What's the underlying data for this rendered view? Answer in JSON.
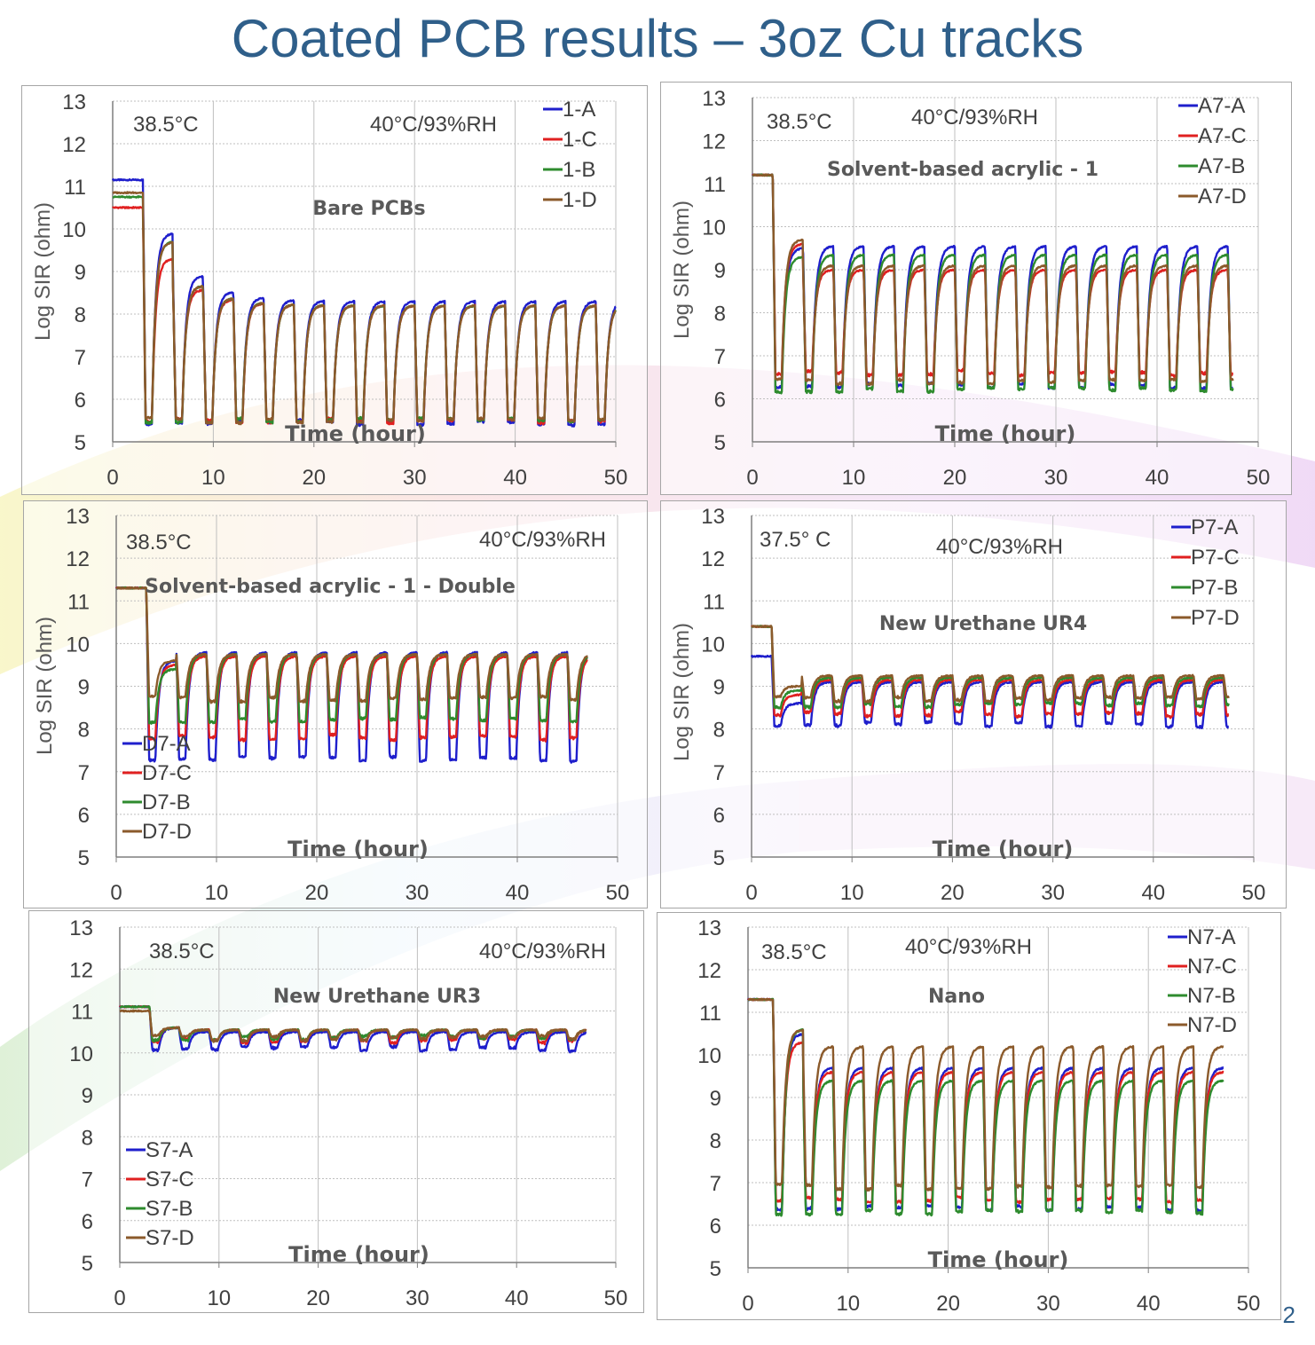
{
  "slide": {
    "title": "Coated PCB results – 3oz  Cu tracks",
    "page_number": "2"
  },
  "chart_data": [
    {
      "type": "line",
      "subtitle": "Bare PCBs",
      "annotations": [
        "38.5°C",
        "40°C/93%RH"
      ],
      "xlabel": "Time (hour)",
      "ylabel": "Log SIR (ohm)",
      "xlim": [
        0,
        50
      ],
      "ylim": [
        5,
        13
      ],
      "xticks": [
        0,
        10,
        20,
        30,
        40,
        50
      ],
      "yticks": [
        5,
        6,
        7,
        8,
        9,
        10,
        11,
        12,
        13
      ],
      "grid": true,
      "legend_position": "top-right",
      "cycle": {
        "start": 3,
        "period": 3,
        "end": 50,
        "first_peak": [
          9.9,
          9.3,
          9.7,
          9.7
        ],
        "peak_decay": [
          0.6,
          0.55,
          0.5,
          0.5
        ],
        "steady_high": [
          8.3,
          8.2,
          8.2,
          8.2
        ],
        "low": [
          5.45,
          5.5,
          5.5,
          5.5
        ],
        "initial": [
          11.15,
          10.5,
          10.75,
          10.85
        ]
      },
      "series": [
        {
          "name": "1-A",
          "color": "#1f1fcc"
        },
        {
          "name": "1-C",
          "color": "#e02020"
        },
        {
          "name": "1-B",
          "color": "#2e8b2e"
        },
        {
          "name": "1-D",
          "color": "#8b5a2b"
        }
      ]
    },
    {
      "type": "line",
      "subtitle": "Solvent-based acrylic - 1",
      "annotations": [
        "38.5°C",
        "40°C/93%RH"
      ],
      "xlabel": "Time (hour)",
      "ylabel": "Log SIR (ohm)",
      "xlim": [
        0,
        50
      ],
      "ylim": [
        5,
        13
      ],
      "xticks": [
        0,
        10,
        20,
        30,
        40,
        50
      ],
      "yticks": [
        5,
        6,
        7,
        8,
        9,
        10,
        11,
        12,
        13
      ],
      "grid": true,
      "legend_position": "top-right",
      "cycle": {
        "start": 2,
        "period": 3,
        "end": 47.5,
        "first_peak": [
          9.5,
          9.6,
          9.3,
          9.7
        ],
        "peak_decay": [
          0,
          0,
          0,
          0
        ],
        "steady_high": [
          9.55,
          9.0,
          9.35,
          9.1
        ],
        "low": [
          6.3,
          6.6,
          6.2,
          6.4
        ],
        "initial": [
          11.2,
          11.2,
          11.2,
          11.2
        ]
      },
      "series": [
        {
          "name": "A7-A",
          "color": "#1f1fcc"
        },
        {
          "name": "A7-C",
          "color": "#e02020"
        },
        {
          "name": "A7-B",
          "color": "#2e8b2e"
        },
        {
          "name": "A7-D",
          "color": "#8b5a2b"
        }
      ]
    },
    {
      "type": "line",
      "subtitle": "Solvent-based acrylic - 1 - Double",
      "annotations": [
        "38.5°C",
        "40°C/93%RH"
      ],
      "xlabel": "Time (hour)",
      "ylabel": "Log SIR (ohm)",
      "xlim": [
        0,
        50
      ],
      "ylim": [
        5,
        13
      ],
      "xticks": [
        0,
        10,
        20,
        30,
        40,
        50
      ],
      "yticks": [
        5,
        6,
        7,
        8,
        9,
        10,
        11,
        12,
        13
      ],
      "grid": true,
      "legend_position": "bottom-left",
      "cycle": {
        "start": 3,
        "period": 3,
        "end": 47,
        "first_peak": [
          9.6,
          9.5,
          9.4,
          9.6
        ],
        "peak_decay": [
          0,
          0,
          0,
          0
        ],
        "steady_high": [
          9.8,
          9.7,
          9.75,
          9.75
        ],
        "low": [
          7.3,
          7.8,
          8.2,
          8.7
        ],
        "initial": [
          11.3,
          11.3,
          11.3,
          11.3
        ]
      },
      "series": [
        {
          "name": "D7-A",
          "color": "#1f1fcc"
        },
        {
          "name": "D7-C",
          "color": "#e02020"
        },
        {
          "name": "D7-B",
          "color": "#2e8b2e"
        },
        {
          "name": "D7-D",
          "color": "#8b5a2b"
        }
      ]
    },
    {
      "type": "line",
      "subtitle": "New Urethane UR4",
      "annotations": [
        "37.5° C",
        "40°C/93%RH"
      ],
      "xlabel": "Time (hour)",
      "ylabel": "Log SIR (ohm)",
      "xlim": [
        0,
        50
      ],
      "ylim": [
        5,
        13
      ],
      "xticks": [
        0,
        10,
        20,
        30,
        40,
        50
      ],
      "yticks": [
        5,
        6,
        7,
        8,
        9,
        10,
        11,
        12,
        13
      ],
      "grid": true,
      "legend_position": "top-right",
      "cycle": {
        "start": 2,
        "period": 3,
        "end": 47.5,
        "first_peak": [
          8.6,
          8.8,
          8.9,
          9.0
        ],
        "peak_decay": [
          0,
          0,
          0,
          0
        ],
        "steady_high": [
          9.1,
          9.15,
          9.2,
          9.25
        ],
        "low": [
          8.1,
          8.35,
          8.55,
          8.7
        ],
        "initial": [
          9.7,
          10.4,
          10.4,
          10.4
        ]
      },
      "series": [
        {
          "name": "P7-A",
          "color": "#1f1fcc"
        },
        {
          "name": "P7-C",
          "color": "#e02020"
        },
        {
          "name": "P7-B",
          "color": "#2e8b2e"
        },
        {
          "name": "P7-D",
          "color": "#8b5a2b"
        }
      ]
    },
    {
      "type": "line",
      "subtitle": "New Urethane UR3",
      "annotations": [
        "38.5°C",
        "40°C/93%RH"
      ],
      "xlabel": "Time (hour)",
      "ylabel": "",
      "xlim": [
        0,
        50
      ],
      "ylim": [
        5,
        13
      ],
      "xticks": [
        0,
        10,
        20,
        30,
        40,
        50
      ],
      "yticks": [
        5,
        6,
        7,
        8,
        9,
        10,
        11,
        12,
        13
      ],
      "grid": true,
      "legend_position": "bottom-left",
      "cycle": {
        "start": 3,
        "period": 3,
        "end": 47,
        "first_peak": [
          10.6,
          10.6,
          10.6,
          10.6
        ],
        "peak_decay": [
          0,
          0,
          0,
          0
        ],
        "steady_high": [
          10.5,
          10.55,
          10.55,
          10.55
        ],
        "low": [
          10.1,
          10.3,
          10.35,
          10.35
        ],
        "initial": [
          11.1,
          11.1,
          11.1,
          11.0
        ]
      },
      "series": [
        {
          "name": "S7-A",
          "color": "#1f1fcc"
        },
        {
          "name": "S7-C",
          "color": "#e02020"
        },
        {
          "name": "S7-B",
          "color": "#2e8b2e"
        },
        {
          "name": "S7-D",
          "color": "#8b5a2b"
        }
      ]
    },
    {
      "type": "line",
      "subtitle": "Nano",
      "annotations": [
        "38.5°C",
        "40°C/93%RH"
      ],
      "xlabel": "Time (hour)",
      "ylabel": "",
      "xlim": [
        0,
        50
      ],
      "ylim": [
        5,
        13
      ],
      "xticks": [
        0,
        10,
        20,
        30,
        40,
        50
      ],
      "yticks": [
        5,
        6,
        7,
        8,
        9,
        10,
        11,
        12,
        13
      ],
      "grid": true,
      "legend_position": "top-right",
      "cycle": {
        "start": 2.5,
        "period": 3,
        "end": 47.5,
        "first_peak": [
          10.5,
          10.3,
          10.6,
          10.6
        ],
        "peak_decay": [
          0,
          0,
          0,
          0
        ],
        "steady_high": [
          9.7,
          9.6,
          9.4,
          10.2
        ],
        "low": [
          6.4,
          6.6,
          6.3,
          6.9
        ],
        "initial": [
          11.3,
          11.3,
          11.3,
          11.3
        ]
      },
      "series": [
        {
          "name": "N7-A",
          "color": "#1f1fcc"
        },
        {
          "name": "N7-C",
          "color": "#e02020"
        },
        {
          "name": "N7-B",
          "color": "#2e8b2e"
        },
        {
          "name": "N7-D",
          "color": "#8b5a2b"
        }
      ]
    }
  ]
}
